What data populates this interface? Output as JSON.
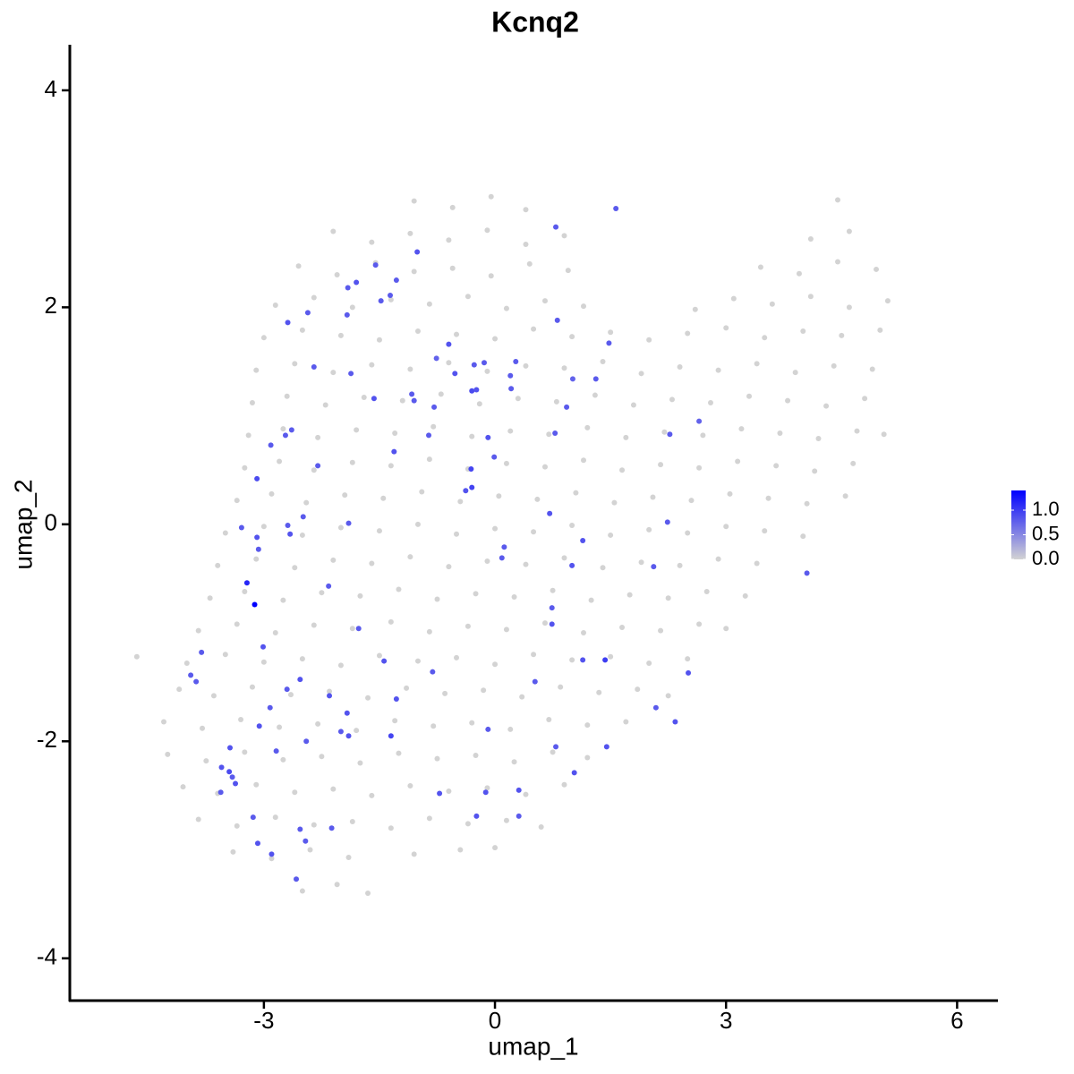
{
  "chart_data": {
    "type": "scatter",
    "title": "Kcnq2",
    "x_label": "umap_1",
    "y_label": "umap_2",
    "xlim": [
      -5.52,
      6.53
    ],
    "ylim": [
      -4.39,
      4.42
    ],
    "xticks": [
      -3,
      0,
      3,
      6
    ],
    "yticks": [
      -4,
      -2,
      0,
      2,
      4
    ],
    "grid": false,
    "color_low": "#d3d3d3",
    "color_high": "#0000ff",
    "color_lim": [
      0,
      1.4
    ],
    "color_ticks": [
      {
        "value": 0,
        "label": "0.0"
      },
      {
        "value": 0.5,
        "label": "0.5"
      },
      {
        "value": 1,
        "label": "1.0"
      }
    ],
    "legend_position": "right",
    "x": [
      -1.05,
      -0.55,
      -0.05,
      0.4,
      4.45,
      -2.1,
      -1.6,
      -1.1,
      -0.6,
      -0.1,
      0.4,
      0.9,
      4.1,
      4.6,
      -2.55,
      -2.05,
      -1.55,
      -1.05,
      -0.55,
      -0.05,
      0.45,
      0.95,
      3.45,
      3.95,
      4.45,
      4.95,
      -2.85,
      -2.35,
      -1.85,
      -1.35,
      -0.85,
      -0.35,
      0.15,
      0.65,
      1.15,
      2.6,
      3.1,
      3.6,
      4.1,
      4.6,
      5.1,
      -3.0,
      -2.5,
      -2.0,
      -1.5,
      -1.0,
      -0.5,
      0,
      0.5,
      1.0,
      1.5,
      2.0,
      2.5,
      3.0,
      3.5,
      4.0,
      4.5,
      5.0,
      -3.1,
      -2.6,
      -2.1,
      -1.6,
      -1.1,
      -0.6,
      -0.1,
      0.4,
      0.9,
      1.4,
      1.9,
      2.4,
      2.9,
      3.4,
      3.9,
      4.4,
      4.9,
      -3.15,
      -2.7,
      -2.2,
      -1.7,
      -1.2,
      -0.7,
      -0.2,
      0.3,
      0.8,
      1.3,
      1.8,
      2.3,
      2.8,
      3.3,
      3.8,
      4.3,
      4.8,
      -3.2,
      -2.75,
      -2.3,
      -1.8,
      -1.3,
      -0.8,
      -0.3,
      0.2,
      0.7,
      1.2,
      1.7,
      2.2,
      2.7,
      3.2,
      3.7,
      4.2,
      4.7,
      5.05,
      -3.25,
      -2.8,
      -2.35,
      -1.85,
      -1.35,
      -0.85,
      -0.35,
      0.15,
      0.65,
      1.15,
      1.65,
      2.15,
      2.65,
      3.15,
      3.65,
      4.15,
      4.65,
      -3.35,
      -2.9,
      -2.45,
      -1.95,
      -1.45,
      -0.95,
      -0.45,
      0.05,
      0.55,
      1.05,
      1.55,
      2.05,
      2.55,
      3.05,
      3.55,
      4.05,
      4.55,
      -3.5,
      -3.0,
      -2.5,
      -2.0,
      -1.5,
      -1.0,
      -0.5,
      0,
      0.5,
      1.0,
      1.5,
      2.0,
      2.5,
      3.0,
      3.5,
      4.0,
      -3.6,
      -3.1,
      -2.6,
      -2.1,
      -1.6,
      -1.1,
      -0.6,
      -0.1,
      0.4,
      0.9,
      1.4,
      1.9,
      2.4,
      2.9,
      3.4,
      -3.7,
      -3.25,
      -2.75,
      -2.25,
      -1.75,
      -1.25,
      -0.75,
      -0.25,
      0.25,
      0.75,
      1.25,
      1.75,
      2.25,
      2.75,
      3.25,
      -3.85,
      -3.35,
      -2.85,
      -2.35,
      -1.85,
      -1.35,
      -0.85,
      -0.35,
      0.15,
      0.65,
      1.15,
      1.65,
      2.15,
      2.65,
      3.0,
      -4.65,
      -4.0,
      -3.5,
      -3.0,
      -2.5,
      -2.0,
      -1.5,
      -1.0,
      -0.5,
      0,
      0.5,
      1.0,
      1.5,
      2.0,
      2.5,
      -4.1,
      -3.65,
      -3.15,
      -2.65,
      -2.15,
      -1.65,
      -1.15,
      -0.65,
      -0.15,
      0.35,
      0.85,
      1.35,
      1.85,
      2.25,
      -4.3,
      -3.8,
      -3.3,
      -2.8,
      -2.3,
      -1.8,
      -1.3,
      -0.8,
      -0.3,
      0.2,
      0.7,
      1.2,
      1.7,
      -4.25,
      -3.75,
      -3.25,
      -2.75,
      -2.25,
      -1.75,
      -1.25,
      -0.75,
      -0.25,
      0.25,
      0.75,
      1.2,
      -4.05,
      -3.6,
      -3.1,
      -2.6,
      -2.1,
      -1.6,
      -1.1,
      -0.6,
      -0.1,
      0.4,
      0.9,
      -3.85,
      -3.35,
      -2.85,
      -2.35,
      -1.85,
      -1.35,
      -0.85,
      -0.35,
      0.15,
      0.6,
      -3.4,
      -2.9,
      -2.4,
      -1.9,
      -1.05,
      -0.45,
      0.0,
      -2.5,
      -2.05,
      -1.65,
      1.57,
      0.79,
      -1.01,
      -1.55,
      -1.28,
      -1.8,
      -1.91,
      -1.36,
      -1.48,
      -2.43,
      -1.92,
      -2.69,
      0.81,
      -0.6,
      1.48,
      -0.76,
      -0.14,
      0.27,
      -2.35,
      -1.87,
      -0.52,
      -0.3,
      0.2,
      -0.27,
      -0.24,
      0.21,
      1.01,
      1.31,
      -1.57,
      -1.08,
      -1.05,
      -0.79,
      0.93,
      2.65,
      0.78,
      2.27,
      -2.72,
      -2.64,
      -0.86,
      -0.09,
      -2.91,
      -1.31,
      -0.01,
      -0.31,
      -0.3,
      -0.38,
      -2.3,
      -3.09,
      0.71,
      -2.49,
      -1.9,
      2.24,
      -3.29,
      -2.69,
      -2.66,
      0.12,
      0.09,
      1.14,
      -3.09,
      -3.07,
      1.0,
      2.06,
      4.05,
      -3.22,
      -3.12,
      -2.16,
      0.74,
      0.74,
      -1.77,
      -3.01,
      1.14,
      1.43,
      -1.44,
      -3.81,
      -0.81,
      2.51,
      -3.95,
      -3.88,
      -2.53,
      0.52,
      -2.7,
      -2.15,
      -1.28,
      2.09,
      -2.92,
      -1.92,
      2.34,
      -3.06,
      -0.09,
      -2.0,
      -1.9,
      -1.35,
      -2.45,
      -2.84,
      1.45,
      -3.44,
      0.79,
      -3.55,
      -3.45,
      -3.41,
      -3.37,
      1.03,
      -3.56,
      -0.72,
      -0.12,
      0.31,
      -3.14,
      -0.24,
      0.31,
      -2.12,
      -2.53,
      -3.08,
      -2.46,
      -2.9,
      -2.58
    ],
    "y": [
      2.98,
      2.92,
      3.02,
      2.9,
      2.99,
      2.7,
      2.6,
      2.68,
      2.62,
      2.71,
      2.58,
      2.66,
      2.63,
      2.7,
      2.38,
      2.3,
      2.41,
      2.33,
      2.36,
      2.29,
      2.4,
      2.34,
      2.37,
      2.31,
      2.42,
      2.35,
      2.02,
      2.09,
      2.0,
      2.07,
      2.03,
      2.1,
      1.99,
      2.06,
      2.01,
      1.98,
      2.08,
      2.03,
      2.1,
      2.0,
      2.06,
      1.72,
      1.79,
      1.74,
      1.7,
      1.78,
      1.75,
      1.71,
      1.8,
      1.73,
      1.77,
      1.7,
      1.76,
      1.81,
      1.72,
      1.78,
      1.74,
      1.79,
      1.42,
      1.48,
      1.4,
      1.47,
      1.43,
      1.49,
      1.41,
      1.46,
      1.44,
      1.5,
      1.39,
      1.45,
      1.42,
      1.48,
      1.4,
      1.46,
      1.43,
      1.12,
      1.18,
      1.1,
      1.17,
      1.14,
      1.2,
      1.11,
      1.16,
      1.13,
      1.19,
      1.1,
      1.15,
      1.12,
      1.18,
      1.14,
      1.09,
      1.16,
      0.82,
      0.88,
      0.8,
      0.87,
      0.84,
      0.9,
      0.81,
      0.86,
      0.83,
      0.89,
      0.8,
      0.85,
      0.82,
      0.88,
      0.84,
      0.79,
      0.86,
      0.83,
      0.52,
      0.58,
      0.5,
      0.57,
      0.54,
      0.6,
      0.51,
      0.56,
      0.53,
      0.59,
      0.5,
      0.55,
      0.52,
      0.58,
      0.54,
      0.49,
      0.56,
      0.22,
      0.28,
      0.2,
      0.27,
      0.24,
      0.3,
      0.21,
      0.26,
      0.23,
      0.29,
      0.2,
      0.25,
      0.22,
      0.28,
      0.24,
      0.19,
      0.26,
      -0.08,
      -0.02,
      -0.1,
      -0.03,
      -0.06,
      0,
      -0.09,
      -0.04,
      -0.07,
      -0.01,
      -0.1,
      -0.05,
      -0.08,
      -0.02,
      -0.06,
      -0.11,
      -0.38,
      -0.32,
      -0.4,
      -0.33,
      -0.36,
      -0.3,
      -0.39,
      -0.34,
      -0.37,
      -0.31,
      -0.4,
      -0.35,
      -0.38,
      -0.32,
      -0.36,
      -0.68,
      -0.62,
      -0.7,
      -0.63,
      -0.66,
      -0.6,
      -0.69,
      -0.64,
      -0.67,
      -0.61,
      -0.7,
      -0.65,
      -0.68,
      -0.62,
      -0.66,
      -0.98,
      -0.92,
      -1.0,
      -0.93,
      -0.96,
      -0.9,
      -0.99,
      -0.94,
      -0.97,
      -0.91,
      -1.0,
      -0.95,
      -0.98,
      -0.92,
      -0.96,
      -1.22,
      -1.28,
      -1.2,
      -1.27,
      -1.24,
      -1.3,
      -1.21,
      -1.26,
      -1.23,
      -1.29,
      -1.2,
      -1.25,
      -1.22,
      -1.28,
      -1.24,
      -1.52,
      -1.58,
      -1.5,
      -1.57,
      -1.54,
      -1.6,
      -1.51,
      -1.56,
      -1.53,
      -1.59,
      -1.5,
      -1.55,
      -1.52,
      -1.58,
      -1.82,
      -1.88,
      -1.8,
      -1.87,
      -1.84,
      -1.9,
      -1.81,
      -1.86,
      -1.83,
      -1.89,
      -1.8,
      -1.85,
      -1.82,
      -2.12,
      -2.18,
      -2.1,
      -2.17,
      -2.14,
      -2.2,
      -2.11,
      -2.16,
      -2.13,
      -2.19,
      -2.1,
      -2.15,
      -2.42,
      -2.48,
      -2.4,
      -2.47,
      -2.44,
      -2.5,
      -2.41,
      -2.46,
      -2.43,
      -2.49,
      -2.4,
      -2.72,
      -2.78,
      -2.7,
      -2.77,
      -2.74,
      -2.8,
      -2.71,
      -2.76,
      -2.73,
      -2.79,
      -3.02,
      -3.08,
      -3.0,
      -3.07,
      -3.04,
      -3.0,
      -2.98,
      -3.38,
      -3.32,
      -3.4,
      2.91,
      2.74,
      2.51,
      2.39,
      2.25,
      2.23,
      2.18,
      2.11,
      2.06,
      1.95,
      1.93,
      1.86,
      1.88,
      1.66,
      1.67,
      1.53,
      1.49,
      1.5,
      1.45,
      1.39,
      1.39,
      1.23,
      1.37,
      1.47,
      1.24,
      1.25,
      1.34,
      1.34,
      1.16,
      1.2,
      1.14,
      1.08,
      1.08,
      0.95,
      0.84,
      0.83,
      0.82,
      0.87,
      0.82,
      0.8,
      0.73,
      0.67,
      0.62,
      0.51,
      0.34,
      0.31,
      0.54,
      0.42,
      0.1,
      0.07,
      0.01,
      0.02,
      -0.03,
      -0.01,
      -0.09,
      -0.21,
      -0.31,
      -0.15,
      -0.12,
      -0.23,
      -0.38,
      -0.39,
      -0.45,
      -0.54,
      -0.74,
      -0.57,
      -0.77,
      -0.92,
      -0.96,
      -1.13,
      -1.25,
      -1.25,
      -1.26,
      -1.18,
      -1.36,
      -1.37,
      -1.39,
      -1.45,
      -1.43,
      -1.45,
      -1.52,
      -1.58,
      -1.61,
      -1.69,
      -1.69,
      -1.74,
      -1.82,
      -1.86,
      -1.89,
      -1.91,
      -1.95,
      -1.95,
      -2.0,
      -2.09,
      -2.05,
      -2.06,
      -2.05,
      -2.24,
      -2.28,
      -2.33,
      -2.39,
      -2.29,
      -2.47,
      -2.48,
      -2.47,
      -2.45,
      -2.7,
      -2.69,
      -2.69,
      -2.8,
      -2.81,
      -2.94,
      -2.92,
      -3.04,
      -3.27
    ],
    "values": [
      0,
      0,
      0,
      0,
      0,
      0,
      0,
      0,
      0,
      0,
      0,
      0,
      0,
      0,
      0,
      0,
      0,
      0,
      0,
      0,
      0,
      0,
      0,
      0,
      0,
      0,
      0,
      0,
      0,
      0,
      0,
      0,
      0,
      0,
      0,
      0,
      0,
      0,
      0,
      0,
      0,
      0,
      0,
      0,
      0,
      0,
      0,
      0,
      0,
      0,
      0,
      0,
      0,
      0,
      0,
      0,
      0,
      0,
      0,
      0,
      0,
      0,
      0,
      0,
      0,
      0,
      0,
      0,
      0,
      0,
      0,
      0,
      0,
      0,
      0,
      0,
      0,
      0,
      0,
      0,
      0,
      0,
      0,
      0,
      0,
      0,
      0,
      0,
      0,
      0,
      0,
      0,
      0,
      0,
      0,
      0,
      0,
      0,
      0,
      0,
      0,
      0,
      0,
      0,
      0,
      0,
      0,
      0,
      0,
      0,
      0,
      0,
      0,
      0,
      0,
      0,
      0,
      0,
      0,
      0,
      0,
      0,
      0,
      0,
      0,
      0,
      0,
      0,
      0,
      0,
      0,
      0,
      0,
      0,
      0,
      0,
      0,
      0,
      0,
      0,
      0,
      0,
      0,
      0,
      0,
      0,
      0,
      0,
      0,
      0,
      0,
      0,
      0,
      0,
      0,
      0,
      0,
      0,
      0,
      0,
      0,
      0,
      0,
      0,
      0,
      0,
      0,
      0,
      0,
      0,
      0,
      0,
      0,
      0,
      0,
      0,
      0,
      0,
      0,
      0,
      0,
      0,
      0,
      0,
      0,
      0,
      0,
      0,
      0,
      0,
      0,
      0,
      0,
      0,
      0,
      0,
      0,
      0,
      0,
      0,
      0,
      0,
      0,
      0,
      0,
      0,
      0,
      0,
      0,
      0,
      0,
      0,
      0,
      0,
      0,
      0,
      0,
      0,
      0,
      0,
      0,
      0,
      0,
      0,
      0,
      0,
      0,
      0,
      0,
      0,
      0,
      0,
      0,
      0,
      0,
      0,
      0,
      0,
      0,
      0,
      0,
      0,
      0,
      0,
      0,
      0,
      0,
      0,
      0,
      0,
      0,
      0,
      0,
      0,
      0,
      0,
      0,
      0,
      0,
      0,
      0,
      0,
      0,
      0,
      0,
      0,
      0,
      0,
      0,
      0,
      0,
      0,
      0,
      0,
      0,
      0,
      0,
      0,
      0,
      0,
      0,
      0,
      0,
      0,
      0,
      0,
      0,
      0,
      0,
      0,
      0.8,
      0.8,
      0.85,
      0.8,
      0.8,
      0.85,
      0.8,
      0.8,
      0.8,
      0.8,
      0.8,
      0.85,
      0.8,
      0.85,
      0.8,
      0.75,
      0.8,
      0.8,
      0.8,
      0.8,
      0.85,
      0.9,
      0.8,
      0.8,
      0.85,
      0.8,
      0.75,
      0.8,
      0.85,
      0.8,
      0.8,
      0.8,
      0.8,
      0.75,
      0.8,
      0.8,
      0.8,
      0.8,
      0.8,
      0.85,
      0.8,
      0.85,
      0.8,
      0.95,
      0.95,
      0.85,
      0.8,
      0.9,
      0.85,
      0.8,
      0.8,
      0.8,
      0.8,
      0.8,
      0.85,
      0.8,
      0.8,
      0.85,
      0.85,
      0.8,
      0.85,
      0.8,
      0.8,
      1.15,
      1.4,
      0.8,
      0.8,
      0.85,
      0.8,
      0.85,
      0.85,
      1.0,
      0.85,
      0.8,
      0.8,
      0.85,
      0.8,
      0.8,
      0.85,
      0.8,
      0.8,
      0.85,
      0.85,
      0.8,
      0.8,
      0.85,
      0.85,
      0.85,
      0.8,
      0.8,
      0.85,
      0.95,
      0.8,
      0.8,
      0.85,
      0.85,
      0.8,
      0.85,
      0.9,
      0.8,
      0.85,
      0.85,
      0.8,
      0.85,
      0.85,
      0.85,
      0.8,
      0.85,
      0.8,
      0.8,
      0.8,
      0.85,
      0.8,
      0.85,
      0.8
    ]
  }
}
